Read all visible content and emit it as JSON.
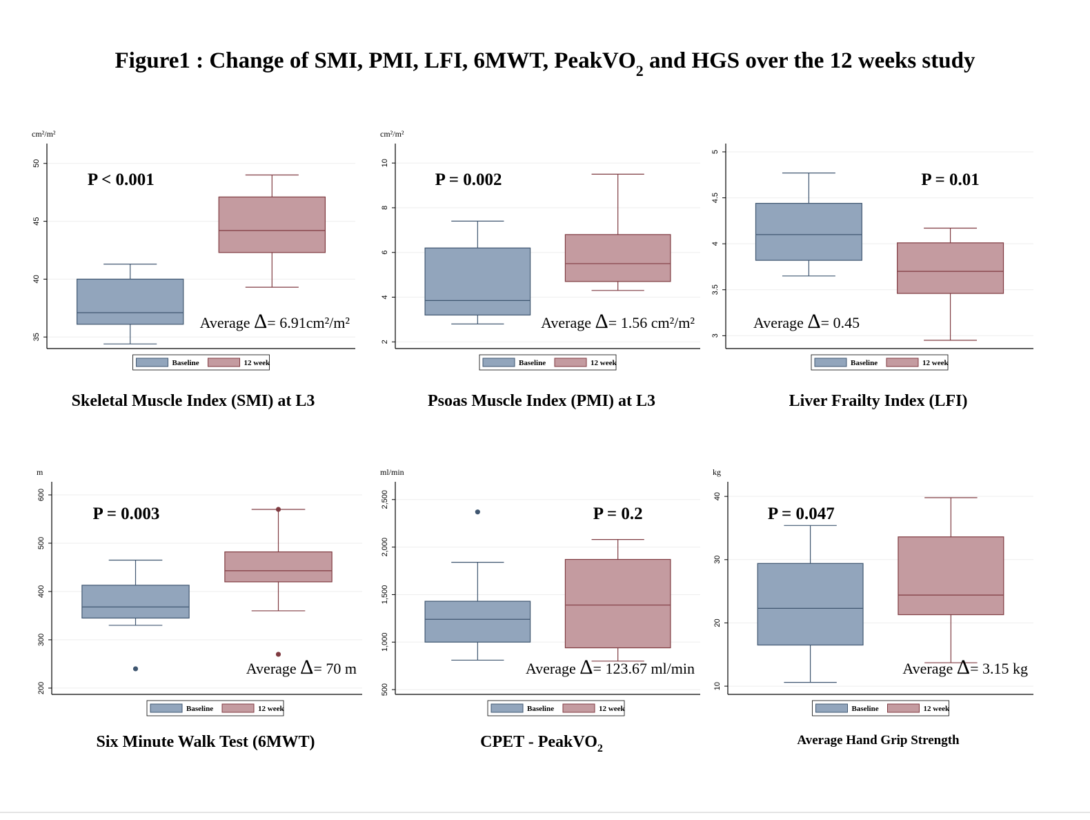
{
  "title": {
    "main": "Figure1 : Change of SMI, PMI, LFI, 6MWT, PeakVO",
    "sub": "2",
    "tail": " and HGS over the 12 weeks study"
  },
  "colors": {
    "baseline_fill": "#92a5bc",
    "baseline_line": "#3f5670",
    "week12_fill": "#c49ba0",
    "week12_line": "#7f3a40"
  },
  "chart_data": [
    {
      "type": "box",
      "unit": "cm²/m²",
      "caption": "Skeletal Muscle Index (SMI) at L3",
      "caption_sub": "",
      "ylim": [
        34,
        51
      ],
      "yticks": [
        35,
        40,
        45,
        50
      ],
      "ytick_labels": [
        "35",
        "40",
        "45",
        "50"
      ],
      "p_value": "P < 0.001",
      "p_pos": "top-left",
      "delta_label": "Average",
      "delta_symbol": "Δ",
      "delta_value": "= 6.91cm²/m²",
      "delta_pos": "right",
      "legend": [
        "Baseline",
        "12 week"
      ],
      "series": [
        {
          "name": "Baseline",
          "whisker_low": 34.4,
          "q1": 36.1,
          "median": 37.1,
          "q3": 40.0,
          "whisker_high": 41.3,
          "outliers": []
        },
        {
          "name": "12 week",
          "whisker_low": 39.3,
          "q1": 42.3,
          "median": 44.2,
          "q3": 47.1,
          "whisker_high": 49.0,
          "outliers": []
        }
      ]
    },
    {
      "type": "box",
      "unit": "cm²/m²",
      "caption": "Psoas Muscle Index (PMI) at L3",
      "caption_sub": "",
      "ylim": [
        1.7,
        10.5
      ],
      "yticks": [
        2,
        4,
        6,
        8,
        10
      ],
      "ytick_labels": [
        "2",
        "4",
        "6",
        "8",
        "10"
      ],
      "p_value": "P = 0.002",
      "p_pos": "top-left",
      "delta_label": "Average",
      "delta_symbol": "Δ",
      "delta_value": "= 1.56 cm²/m²",
      "delta_pos": "right",
      "legend": [
        "Baseline",
        "12 week"
      ],
      "series": [
        {
          "name": "Baseline",
          "whisker_low": 2.8,
          "q1": 3.2,
          "median": 3.85,
          "q3": 6.2,
          "whisker_high": 7.4,
          "outliers": []
        },
        {
          "name": "12 week",
          "whisker_low": 4.3,
          "q1": 4.7,
          "median": 5.5,
          "q3": 6.8,
          "whisker_high": 9.5,
          "outliers": []
        }
      ]
    },
    {
      "type": "box",
      "unit": "",
      "caption": "Liver Frailty Index (LFI)",
      "caption_sub": "",
      "ylim": [
        2.86,
        5.0
      ],
      "yticks": [
        3,
        3.5,
        4,
        4.5,
        5
      ],
      "ytick_labels": [
        "3",
        "3.5",
        "4",
        "4.5",
        "5"
      ],
      "p_value": "P = 0.01",
      "p_pos": "top-right",
      "delta_label": "Average",
      "delta_symbol": "Δ",
      "delta_value": "= 0.45",
      "delta_pos": "left",
      "legend": [
        "Baseline",
        "12 week"
      ],
      "series": [
        {
          "name": "Baseline",
          "whisker_low": 3.65,
          "q1": 3.82,
          "median": 4.1,
          "q3": 4.44,
          "whisker_high": 4.77,
          "outliers": []
        },
        {
          "name": "12 week",
          "whisker_low": 2.95,
          "q1": 3.46,
          "median": 3.7,
          "q3": 4.01,
          "whisker_high": 4.17,
          "outliers": []
        }
      ]
    },
    {
      "type": "box",
      "unit": "m",
      "caption": "Six Minute Walk Test (6MWT)",
      "caption_sub": "",
      "ylim": [
        187,
        610
      ],
      "yticks": [
        200,
        300,
        400,
        500,
        600
      ],
      "ytick_labels": [
        "200",
        "300",
        "400",
        "500",
        "600"
      ],
      "p_value": "P = 0.003",
      "p_pos": "top-left",
      "delta_label": "Average",
      "delta_symbol": "Δ",
      "delta_value": "= 70 m",
      "delta_pos": "right",
      "legend": [
        "Baseline",
        "12 week"
      ],
      "series": [
        {
          "name": "Baseline",
          "whisker_low": 330,
          "q1": 345,
          "median": 368,
          "q3": 413,
          "whisker_high": 465,
          "outliers": [
            240
          ]
        },
        {
          "name": "12 week",
          "whisker_low": 360,
          "q1": 420,
          "median": 443,
          "q3": 482,
          "whisker_high": 570,
          "outliers": [
            270,
            570
          ]
        }
      ]
    },
    {
      "type": "box",
      "unit": "ml/min",
      "caption": "CPET - PeakVO",
      "caption_sub": "2",
      "ylim": [
        450,
        2600
      ],
      "yticks": [
        500,
        1000,
        1500,
        2000,
        2500
      ],
      "ytick_labels": [
        "500",
        "1,000",
        "1,500",
        "2,000",
        "2,500"
      ],
      "p_value": "P = 0.2",
      "p_pos": "top-right",
      "delta_label": "Average",
      "delta_symbol": "Δ",
      "delta_value": "= 123.67 ml/min",
      "delta_pos": "right",
      "legend": [
        "Baseline",
        "12 week"
      ],
      "series": [
        {
          "name": "Baseline",
          "whisker_low": 810,
          "q1": 1000,
          "median": 1240,
          "q3": 1430,
          "whisker_high": 1840,
          "outliers": [
            2370
          ]
        },
        {
          "name": "12 week",
          "whisker_low": 800,
          "q1": 940,
          "median": 1390,
          "q3": 1870,
          "whisker_high": 2080,
          "outliers": []
        }
      ]
    },
    {
      "type": "box",
      "unit": "kg",
      "caption": "Average Hand Grip Strength",
      "caption_sub": "",
      "ylim": [
        8.7,
        41
      ],
      "yticks": [
        10,
        20,
        30,
        40
      ],
      "ytick_labels": [
        "10",
        "20",
        "30",
        "40"
      ],
      "p_value": "P = 0.047",
      "p_pos": "top-left",
      "delta_label": "Average",
      "delta_symbol": "Δ",
      "delta_value": "= 3.15 kg",
      "delta_pos": "right",
      "legend": [
        "Baseline",
        "12 week"
      ],
      "series": [
        {
          "name": "Baseline",
          "whisker_low": 10.6,
          "q1": 16.5,
          "median": 22.3,
          "q3": 29.4,
          "whisker_high": 35.4,
          "outliers": []
        },
        {
          "name": "12 week",
          "whisker_low": 13.7,
          "q1": 21.3,
          "median": 24.4,
          "q3": 33.6,
          "whisker_high": 39.8,
          "outliers": []
        }
      ]
    }
  ]
}
